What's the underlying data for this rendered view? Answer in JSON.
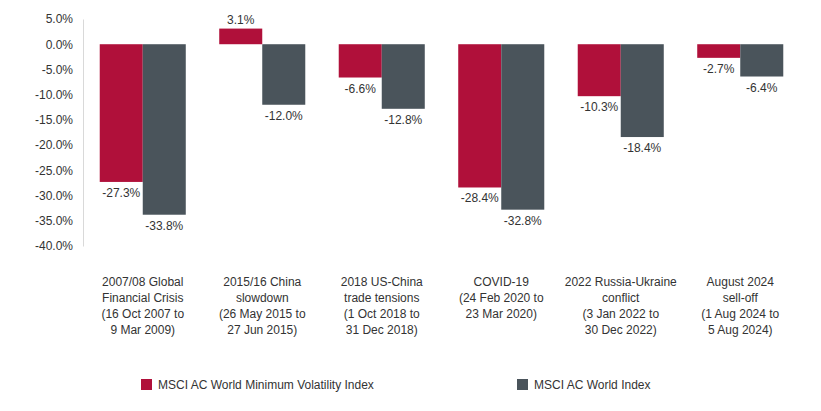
{
  "chart_data": {
    "type": "bar",
    "categories": [
      "2007/08 Global Financial Crisis (16 Oct 2007 to 9 Mar 2009)",
      "2015/16 China slowdown (26 May 2015 to 27 Jun 2015)",
      "2018 US-China trade tensions (1 Oct 2018 to 31 Dec 2018)",
      "COVID-19 (24 Feb 2020 to 23 Mar 2020)",
      "2022 Russia-Ukraine conflict (3 Jan 2022 to 30 Dec 2022)",
      "August 2024 sell-off (1 Aug 2024 to 5 Aug 2024)"
    ],
    "series": [
      {
        "name": "MSCI AC World Minimum Volatility Index",
        "color": "#b0103a",
        "values": [
          -27.3,
          3.1,
          -6.6,
          -28.4,
          -10.3,
          -2.7
        ],
        "value_labels": [
          "-27.3%",
          "3.1%",
          "-6.6%",
          "-28.4%",
          "-10.3%",
          "-2.7%"
        ]
      },
      {
        "name": "MSCI AC World Index",
        "color": "#4a545b",
        "values": [
          -33.8,
          -12.0,
          -12.8,
          -32.8,
          -18.4,
          -6.4
        ],
        "value_labels": [
          "-33.8%",
          "-12.0%",
          "-12.8%",
          "-32.8%",
          "-18.4%",
          "-6.4%"
        ]
      }
    ],
    "ylim": [
      -40,
      5
    ],
    "yticks": [
      {
        "value": 5,
        "label": "5.0%"
      },
      {
        "value": 0,
        "label": "0.0%"
      },
      {
        "value": -5,
        "label": "-5.0%"
      },
      {
        "value": -10,
        "label": "-10.0%"
      },
      {
        "value": -15,
        "label": "-15.0%"
      },
      {
        "value": -20,
        "label": "-20.0%"
      },
      {
        "value": -25,
        "label": "-25.0%"
      },
      {
        "value": -30,
        "label": "-30.0%"
      },
      {
        "value": -35,
        "label": "-35.0%"
      },
      {
        "value": -40,
        "label": "-40.0%"
      }
    ],
    "grid": false,
    "legend": "bottom",
    "data_labels": true
  }
}
